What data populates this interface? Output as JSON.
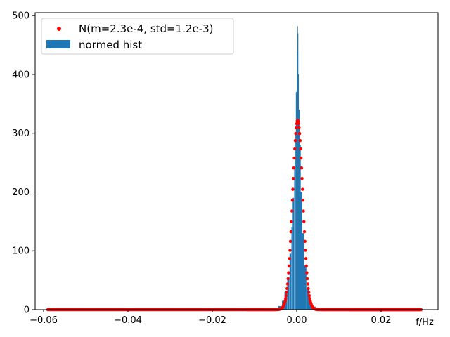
{
  "chart_data": {
    "type": "bar",
    "title": "",
    "xlabel": "f/Hz",
    "ylabel": "",
    "xlim": [
      -0.062,
      0.0335
    ],
    "ylim": [
      0,
      505
    ],
    "x_ticks": [
      -0.06,
      -0.04,
      -0.02,
      0.0,
      0.02
    ],
    "x_tick_labels": [
      "−0.06",
      "−0.04",
      "−0.02",
      "0.00",
      "0.02"
    ],
    "y_ticks": [
      0,
      100,
      200,
      300,
      400,
      500
    ],
    "y_tick_labels": [
      "0",
      "100",
      "200",
      "300",
      "400",
      "500"
    ],
    "grid": false,
    "legend_position": "top-left",
    "series": [
      {
        "name": "N(m=2.3e-4, std=1.2e-3)",
        "kind": "scatter",
        "color": "#ff0000",
        "mean": 0.00023,
        "std": 0.0012,
        "x_start": -0.059,
        "x_end": 0.0295,
        "peak": 322
      },
      {
        "name": "normed hist",
        "kind": "histogram",
        "color": "#1f77b4",
        "bins": [
          {
            "x": -0.006,
            "y": 0.5
          },
          {
            "x": -0.005,
            "y": 2
          },
          {
            "x": -0.004,
            "y": 6
          },
          {
            "x": -0.0032,
            "y": 15
          },
          {
            "x": -0.0026,
            "y": 30
          },
          {
            "x": -0.002,
            "y": 55
          },
          {
            "x": -0.0015,
            "y": 95
          },
          {
            "x": -0.0011,
            "y": 140
          },
          {
            "x": -0.0008,
            "y": 190
          },
          {
            "x": -0.0005,
            "y": 240
          },
          {
            "x": -0.0003,
            "y": 300
          },
          {
            "x": -0.0001,
            "y": 370
          },
          {
            "x": 0.0001,
            "y": 440
          },
          {
            "x": 0.0002,
            "y": 482
          },
          {
            "x": 0.0003,
            "y": 470
          },
          {
            "x": 0.0004,
            "y": 400
          },
          {
            "x": 0.0006,
            "y": 340
          },
          {
            "x": 0.0008,
            "y": 280
          },
          {
            "x": 0.0011,
            "y": 200
          },
          {
            "x": 0.0015,
            "y": 130
          },
          {
            "x": 0.002,
            "y": 75
          },
          {
            "x": 0.0026,
            "y": 35
          },
          {
            "x": 0.0032,
            "y": 14
          },
          {
            "x": 0.004,
            "y": 5
          },
          {
            "x": 0.005,
            "y": 1.5
          },
          {
            "x": 0.006,
            "y": 0.5
          }
        ]
      }
    ]
  }
}
